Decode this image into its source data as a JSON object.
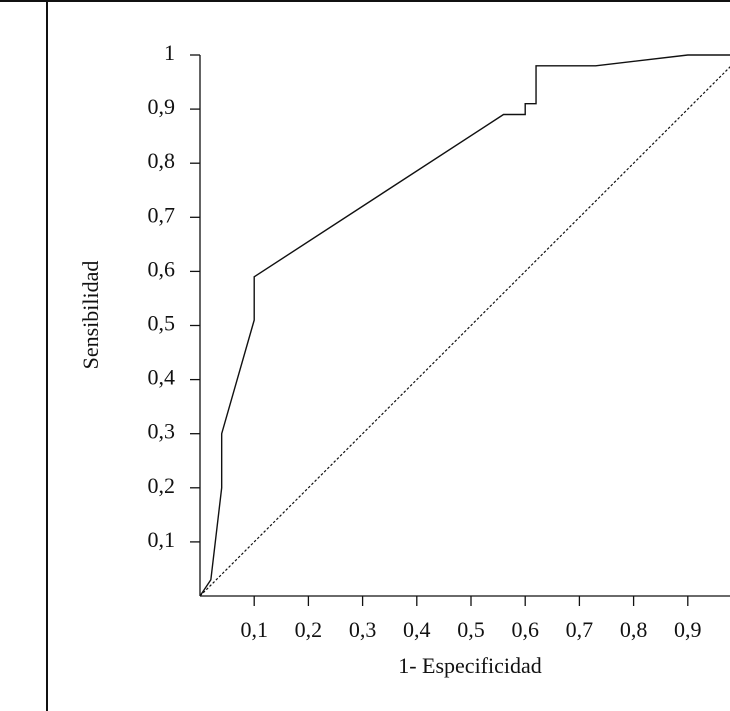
{
  "chart_data": {
    "type": "line",
    "xlabel": "1- Especificidad",
    "ylabel": "Sensibilidad",
    "xlim": [
      0,
      1
    ],
    "ylim": [
      0,
      1
    ],
    "xticks": [
      {
        "value": 0.1,
        "label": "0,1"
      },
      {
        "value": 0.2,
        "label": "0,2"
      },
      {
        "value": 0.3,
        "label": "0,3"
      },
      {
        "value": 0.4,
        "label": "0,4"
      },
      {
        "value": 0.5,
        "label": "0,5"
      },
      {
        "value": 0.6,
        "label": "0,6"
      },
      {
        "value": 0.7,
        "label": "0,7"
      },
      {
        "value": 0.8,
        "label": "0,8"
      },
      {
        "value": 0.9,
        "label": "0,9"
      }
    ],
    "yticks": [
      {
        "value": 0.1,
        "label": "0,1"
      },
      {
        "value": 0.2,
        "label": "0,2"
      },
      {
        "value": 0.3,
        "label": "0,3"
      },
      {
        "value": 0.4,
        "label": "0,4"
      },
      {
        "value": 0.5,
        "label": "0,5"
      },
      {
        "value": 0.6,
        "label": "0,6"
      },
      {
        "value": 0.7,
        "label": "0,7"
      },
      {
        "value": 0.8,
        "label": "0,8"
      },
      {
        "value": 0.9,
        "label": "0,9"
      },
      1
    ],
    "grid": false,
    "series": [
      {
        "color": "#111111",
        "style": "solid",
        "x": [
          0,
          0.02,
          0.04,
          0.04,
          0.1,
          0.1,
          0.56,
          0.6,
          0.6,
          0.62,
          0.62,
          0.73,
          0.9,
          1
        ],
        "values": [
          0,
          0.03,
          0.2,
          0.3,
          0.51,
          0.59,
          0.89,
          0.89,
          0.91,
          0.91,
          0.98,
          0.98,
          1,
          1
        ]
      },
      {
        "color": "#111111",
        "style": "dotted",
        "x": [
          0,
          1
        ],
        "values": [
          0,
          1
        ]
      }
    ]
  }
}
